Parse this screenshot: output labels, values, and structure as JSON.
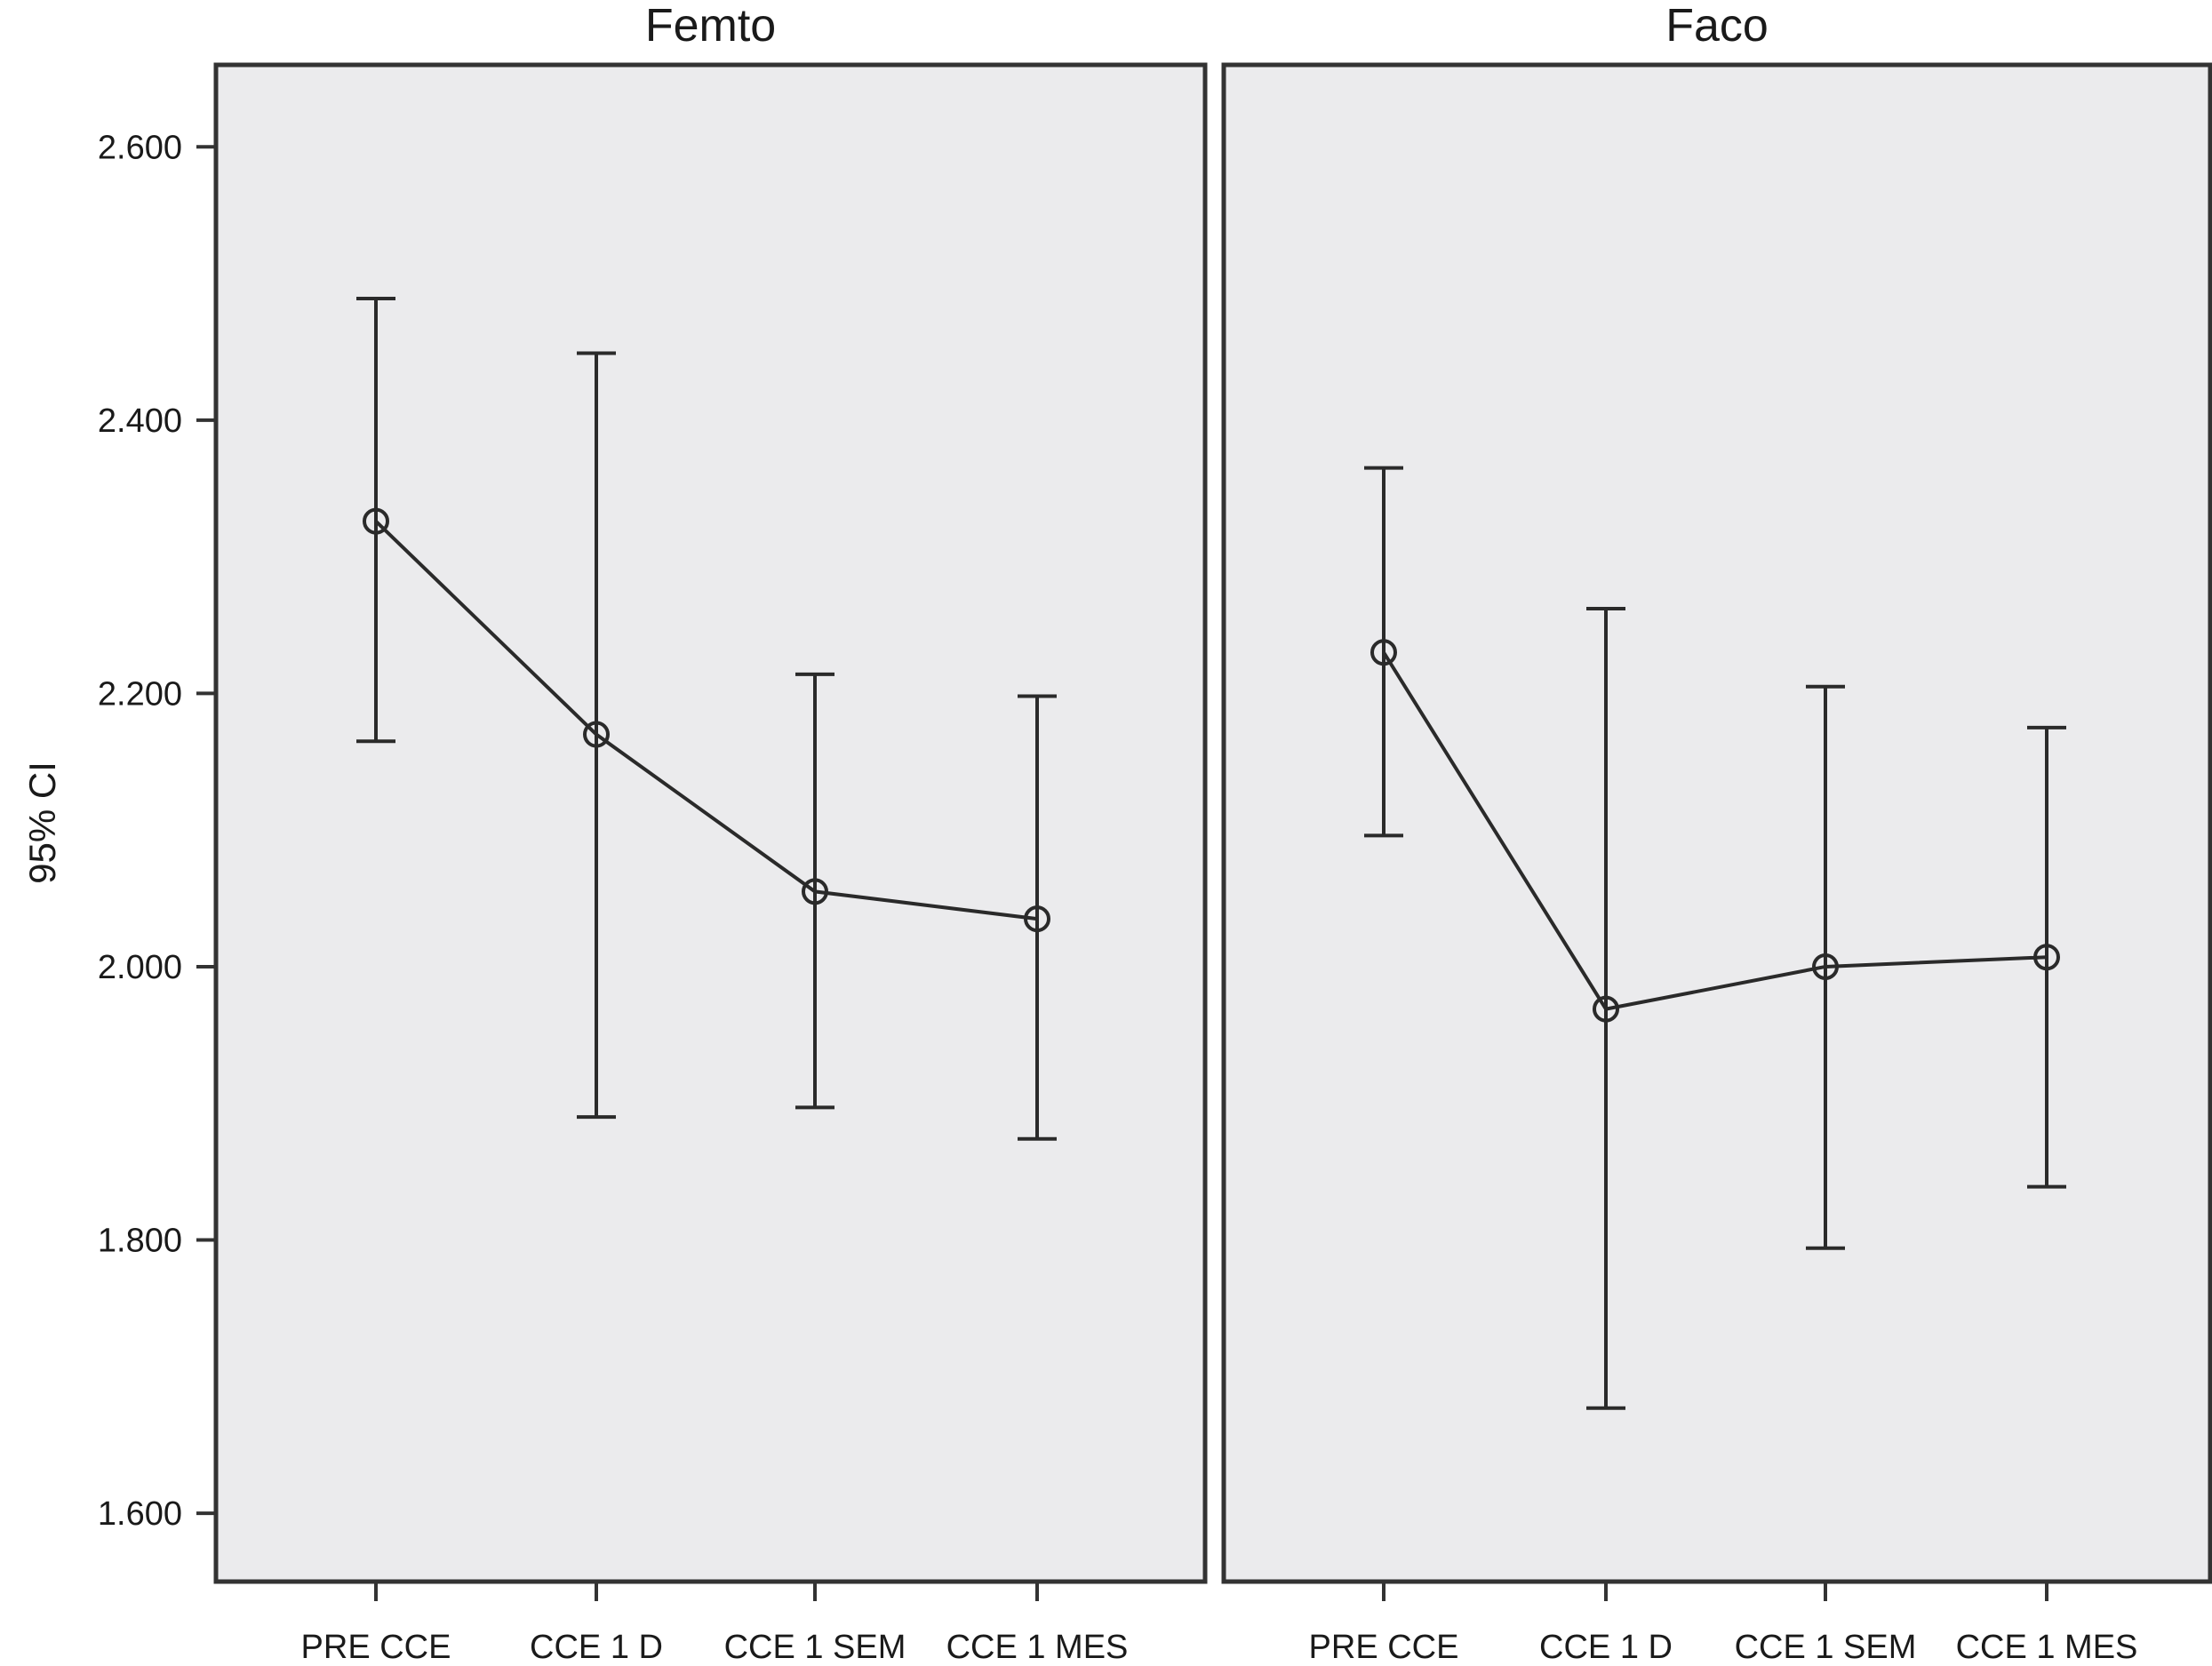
{
  "chart_data": {
    "type": "line",
    "ylabel": "95% CI",
    "ylim": [
      1.55,
      2.66
    ],
    "yticks": [
      1.6,
      1.8,
      2.0,
      2.2,
      2.4,
      2.6
    ],
    "ytick_labels": [
      "1.600",
      "1.800",
      "2.000",
      "2.200",
      "2.400",
      "2.600"
    ],
    "categories": [
      "PRE CCE",
      "CCE 1 D",
      "CCE 1 SEM",
      "CCE 1 MES"
    ],
    "grid": false,
    "panels": [
      {
        "title": "Femto",
        "mean": [
          2.326,
          2.17,
          2.055,
          2.035
        ],
        "lower": [
          2.165,
          1.89,
          1.897,
          1.874
        ],
        "upper": [
          2.489,
          2.449,
          2.214,
          2.198
        ]
      },
      {
        "title": "Faco",
        "mean": [
          2.23,
          1.969,
          2.0,
          2.007
        ],
        "lower": [
          2.096,
          1.677,
          1.794,
          1.839
        ],
        "upper": [
          2.365,
          2.262,
          2.205,
          2.175
        ]
      }
    ]
  }
}
